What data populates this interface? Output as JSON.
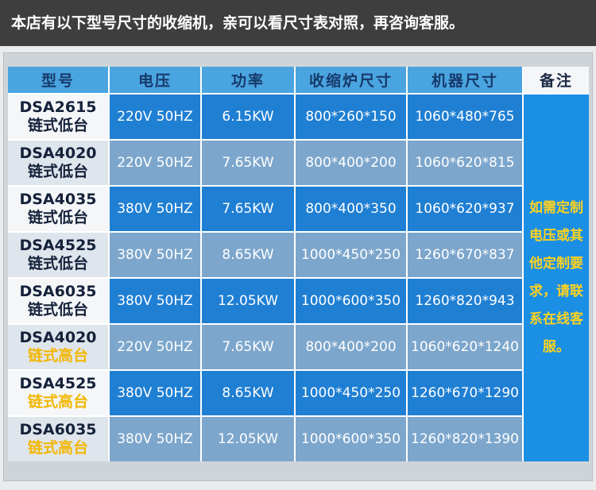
{
  "header": {
    "title": "本店有以下型号尺寸的收缩机，亲可以看尺寸表对照，再咨询客服。"
  },
  "table": {
    "columns": [
      "型号",
      "电压",
      "功率",
      "收缩炉尺寸",
      "机器尺寸",
      "备注"
    ],
    "rows": [
      [
        "DSA2615",
        "链式低台",
        "220V 50HZ",
        "6.15KW",
        "800*260*150",
        "1060*480*765"
      ],
      [
        "DSA4020",
        "链式低台",
        "220V 50HZ",
        "7.65KW",
        "800*400*200",
        "1060*620*815"
      ],
      [
        "DSA4035",
        "链式低台",
        "380V 50HZ",
        "7.65KW",
        "800*400*350",
        "1060*620*937"
      ],
      [
        "DSA4525",
        "链式低台",
        "380V 50HZ",
        "8.65KW",
        "1000*450*250",
        "1260*670*837"
      ],
      [
        "DSA6035",
        "链式低台",
        "380V 50HZ",
        "12.05KW",
        "1000*600*350",
        "1260*820*943"
      ],
      [
        "DSA4020",
        "链式高台",
        "220V 50HZ",
        "7.65KW",
        "800*400*200",
        "1060*620*1240"
      ],
      [
        "DSA4525",
        "链式高台",
        "380V 50HZ",
        "8.65KW",
        "1000*450*250",
        "1260*670*1290"
      ],
      [
        "DSA6035",
        "链式高台",
        "380V 50HZ",
        "12.05KW",
        "1000*600*350",
        "1260*820*1390"
      ]
    ],
    "note": "如需定制电压或其他定制要求，请联系在线客服。"
  }
}
